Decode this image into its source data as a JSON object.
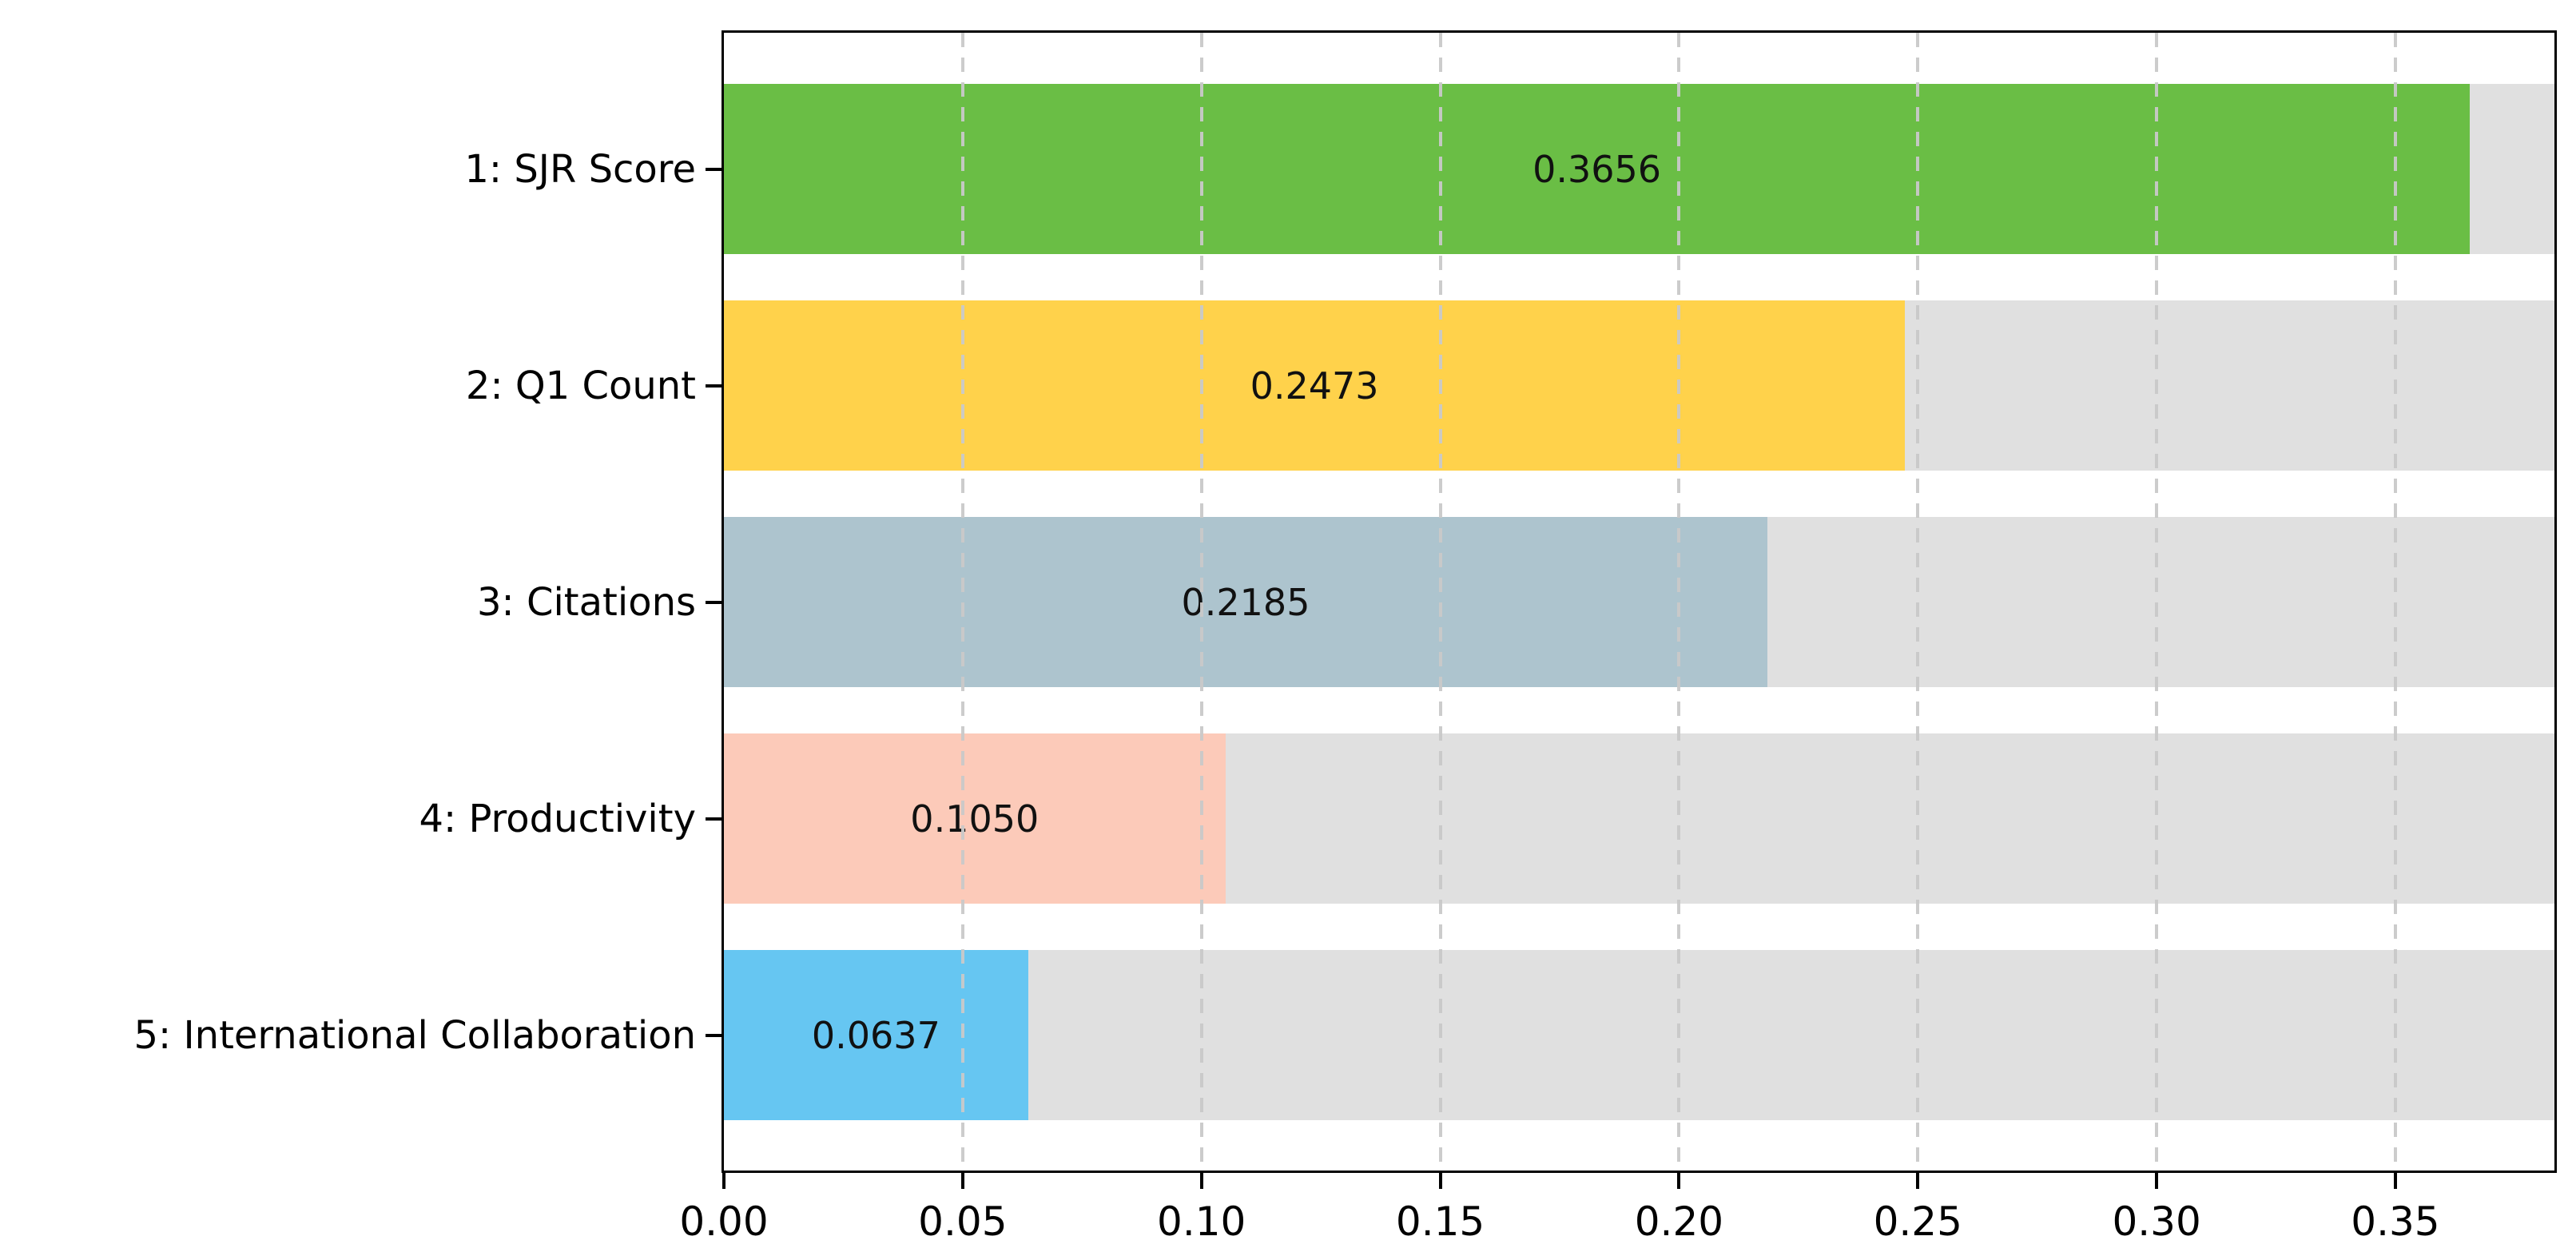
{
  "chart_data": {
    "type": "bar",
    "orientation": "horizontal",
    "categories": [
      "1: SJR Score",
      "2: Q1 Count",
      "3: Citations",
      "4: Productivity",
      "5: International Collaboration"
    ],
    "values": [
      0.3656,
      0.2473,
      0.2185,
      0.105,
      0.0637
    ],
    "value_labels": [
      "0.3656",
      "0.2473",
      "0.2185",
      "0.1050",
      "0.0637"
    ],
    "bar_colors": [
      "#6abe45",
      "#ffd24b",
      "#adc4ce",
      "#fccab9",
      "#66c6f2"
    ],
    "track_color": "#e0e0e0",
    "x_ticks": [
      "0.00",
      "0.05",
      "0.10",
      "0.15",
      "0.20",
      "0.25",
      "0.30",
      "0.35"
    ],
    "x_tick_values": [
      0.0,
      0.05,
      0.1,
      0.15,
      0.2,
      0.25,
      0.3,
      0.35
    ],
    "xlim": [
      0,
      0.3833
    ],
    "grid": "vertical-dashed",
    "legend": "none",
    "title": ""
  }
}
